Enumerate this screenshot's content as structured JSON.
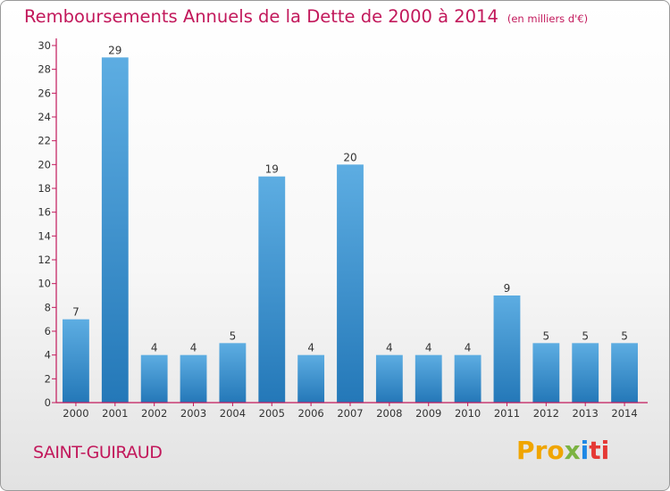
{
  "header": {
    "title": "Remboursements Annuels de la Dette de 2000 à 2014",
    "subtitle": "(en milliers d'€)"
  },
  "footer": {
    "place": "SAINT-GUIRAUD",
    "logo_parts": [
      "Pro",
      "x",
      "i",
      "ti"
    ]
  },
  "colors": {
    "title": "#c2185b",
    "bar_top": "#5dade2",
    "bar_bottom": "#2478b8",
    "axis": "#c2185b"
  },
  "chart_data": {
    "type": "bar",
    "title": "Remboursements Annuels de la Dette de 2000 à 2014",
    "subtitle": "(en milliers d'€)",
    "categories": [
      "2000",
      "2001",
      "2002",
      "2003",
      "2004",
      "2005",
      "2006",
      "2007",
      "2008",
      "2009",
      "2010",
      "2011",
      "2012",
      "2013",
      "2014"
    ],
    "values": [
      7,
      29,
      4,
      4,
      5,
      19,
      4,
      20,
      4,
      4,
      4,
      9,
      5,
      5,
      5
    ],
    "ylim": [
      0,
      30
    ],
    "yticks": [
      0,
      2,
      4,
      6,
      8,
      10,
      12,
      14,
      16,
      18,
      20,
      22,
      24,
      26,
      28,
      30
    ],
    "grid": false,
    "legend": "none"
  }
}
